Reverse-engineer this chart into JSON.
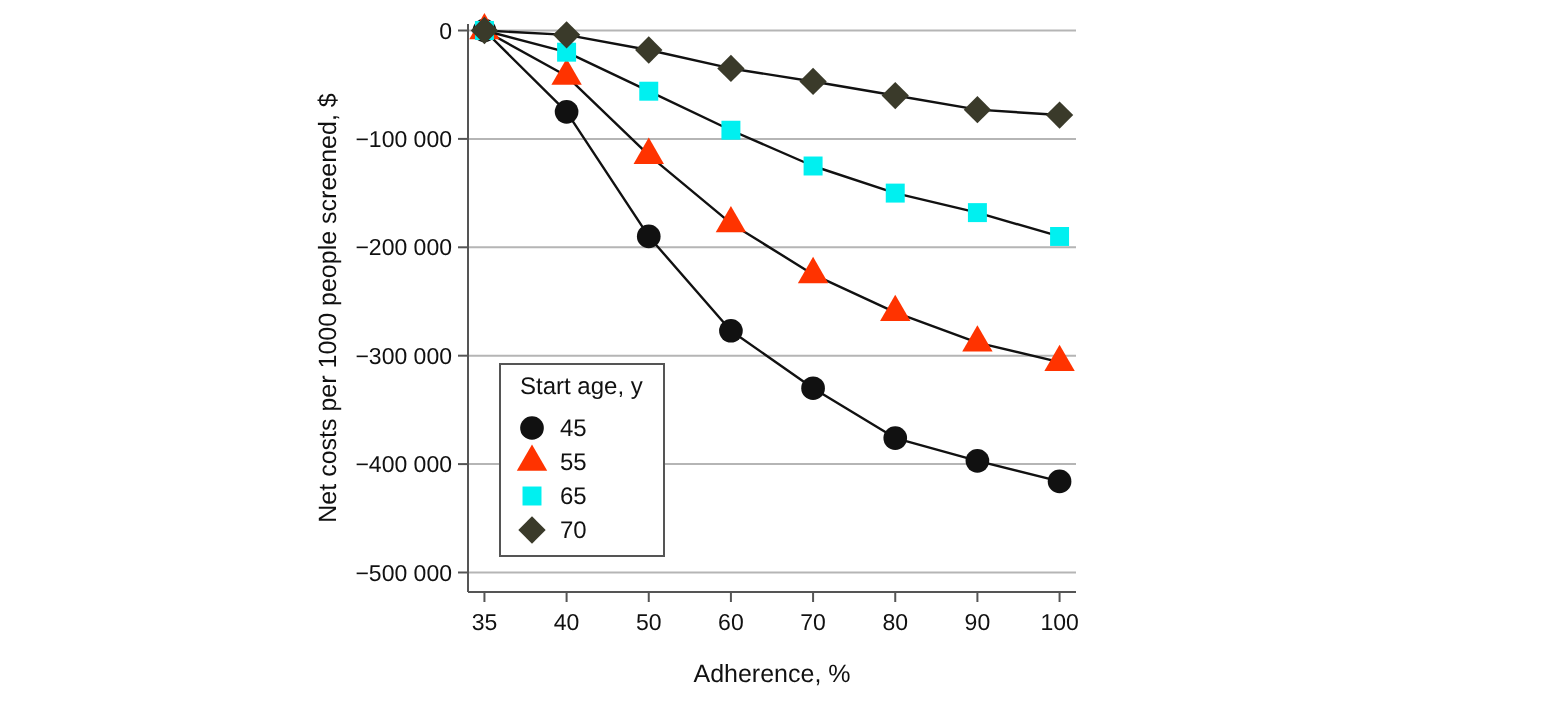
{
  "chart_data": {
    "type": "line",
    "xlabel": "Adherence, %",
    "ylabel": "Net costs per 1000 people screened, $",
    "legend_title": "Start age, y",
    "categories": [
      "35",
      "40",
      "50",
      "60",
      "70",
      "80",
      "90",
      "100"
    ],
    "series": [
      {
        "name": "45",
        "color": "#111111",
        "marker": "circle",
        "values": [
          0,
          -75000,
          -190000,
          -277000,
          -330000,
          -376000,
          -397000,
          -416000
        ]
      },
      {
        "name": "55",
        "color": "#ff3300",
        "marker": "triangle",
        "values": [
          0,
          -42000,
          -115000,
          -178000,
          -225000,
          -260000,
          -288000,
          -306000
        ]
      },
      {
        "name": "65",
        "color": "#00f0f0",
        "marker": "square",
        "values": [
          0,
          -20000,
          -56000,
          -92000,
          -125000,
          -150000,
          -168000,
          -190000
        ]
      },
      {
        "name": "70",
        "color": "#3a3a2a",
        "marker": "diamond",
        "values": [
          0,
          -4000,
          -18000,
          -35000,
          -47000,
          -60000,
          -73000,
          -78000
        ]
      }
    ],
    "ylim": [
      -518000,
      6000
    ],
    "yticks": [
      0,
      {
        "value": -100000,
        "label": "−100 000"
      },
      {
        "value": -200000,
        "label": "−200 000"
      },
      {
        "value": -300000,
        "label": "−300 000"
      },
      {
        "value": -400000,
        "label": "−400 000"
      },
      {
        "value": -500000,
        "label": "−500 000"
      }
    ],
    "grid": "y",
    "legend": "bottom left",
    "line_style": "solid"
  }
}
